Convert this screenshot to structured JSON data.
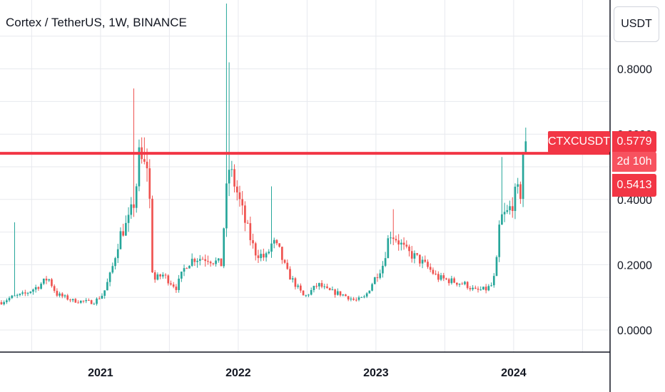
{
  "header": {
    "title": "Cortex / TetherUS, 1W, BINANCE"
  },
  "currency_button": {
    "label": "USDT"
  },
  "tags": {
    "symbol": "CTXCUSDT",
    "last_price": "0.5779",
    "countdown": "2d 10h",
    "horizontal_level": "0.5413"
  },
  "colors": {
    "up": "#26a69a",
    "down": "#ef5350",
    "level_line": "#f23645",
    "grid": "#e7e9ee"
  },
  "chart_data": {
    "type": "candlestick",
    "title": "Cortex / TetherUS, 1W, BINANCE",
    "ylim": [
      -0.07,
      1.0
    ],
    "yticks": [
      {
        "value": 0.0,
        "label": "0.0000"
      },
      {
        "value": 0.2,
        "label": "0.2000"
      },
      {
        "value": 0.4,
        "label": "0.4000"
      },
      {
        "value": 0.6,
        "label": "0.6000"
      },
      {
        "value": 0.8,
        "label": "0.8000"
      }
    ],
    "xticks": [
      {
        "value": 2021.0,
        "label": "2021"
      },
      {
        "value": 2022.0,
        "label": "2022"
      },
      {
        "value": 2023.0,
        "label": "2023"
      },
      {
        "value": 2024.0,
        "label": "2024"
      }
    ],
    "xlim": [
      2020.27,
      2024.7
    ],
    "horizontal_line": 0.5413,
    "last_price": 0.5779,
    "anchors": [
      {
        "t": 2020.28,
        "v": 0.085
      },
      {
        "t": 2020.35,
        "v": 0.1
      },
      {
        "t": 2020.45,
        "v": 0.11
      },
      {
        "t": 2020.55,
        "v": 0.135
      },
      {
        "t": 2020.62,
        "v": 0.16
      },
      {
        "t": 2020.68,
        "v": 0.11
      },
      {
        "t": 2020.8,
        "v": 0.09
      },
      {
        "t": 2020.95,
        "v": 0.085
      },
      {
        "t": 2021.02,
        "v": 0.11
      },
      {
        "t": 2021.08,
        "v": 0.18
      },
      {
        "t": 2021.14,
        "v": 0.29
      },
      {
        "t": 2021.2,
        "v": 0.33
      },
      {
        "t": 2021.25,
        "v": 0.4
      },
      {
        "t": 2021.28,
        "v": 0.53
      },
      {
        "t": 2021.33,
        "v": 0.49
      },
      {
        "t": 2021.35,
        "v": 0.54
      },
      {
        "t": 2021.36,
        "v": 0.33
      },
      {
        "t": 2021.38,
        "v": 0.15
      },
      {
        "t": 2021.45,
        "v": 0.17
      },
      {
        "t": 2021.55,
        "v": 0.13
      },
      {
        "t": 2021.62,
        "v": 0.2
      },
      {
        "t": 2021.68,
        "v": 0.22
      },
      {
        "t": 2021.78,
        "v": 0.22
      },
      {
        "t": 2021.88,
        "v": 0.2
      },
      {
        "t": 2021.9,
        "v": 0.35
      },
      {
        "t": 2021.93,
        "v": 0.5
      },
      {
        "t": 2021.98,
        "v": 0.44
      },
      {
        "t": 2022.05,
        "v": 0.33
      },
      {
        "t": 2022.12,
        "v": 0.24
      },
      {
        "t": 2022.2,
        "v": 0.22
      },
      {
        "t": 2022.25,
        "v": 0.27
      },
      {
        "t": 2022.3,
        "v": 0.24
      },
      {
        "t": 2022.35,
        "v": 0.18
      },
      {
        "t": 2022.43,
        "v": 0.13
      },
      {
        "t": 2022.48,
        "v": 0.1
      },
      {
        "t": 2022.58,
        "v": 0.14
      },
      {
        "t": 2022.65,
        "v": 0.12
      },
      {
        "t": 2022.75,
        "v": 0.11
      },
      {
        "t": 2022.85,
        "v": 0.09
      },
      {
        "t": 2022.92,
        "v": 0.1
      },
      {
        "t": 2022.98,
        "v": 0.15
      },
      {
        "t": 2023.05,
        "v": 0.2
      },
      {
        "t": 2023.1,
        "v": 0.3
      },
      {
        "t": 2023.15,
        "v": 0.28
      },
      {
        "t": 2023.22,
        "v": 0.24
      },
      {
        "t": 2023.3,
        "v": 0.22
      },
      {
        "t": 2023.38,
        "v": 0.19
      },
      {
        "t": 2023.45,
        "v": 0.16
      },
      {
        "t": 2023.55,
        "v": 0.15
      },
      {
        "t": 2023.65,
        "v": 0.14
      },
      {
        "t": 2023.72,
        "v": 0.12
      },
      {
        "t": 2023.8,
        "v": 0.125
      },
      {
        "t": 2023.85,
        "v": 0.14
      },
      {
        "t": 2023.88,
        "v": 0.22
      },
      {
        "t": 2023.9,
        "v": 0.34
      },
      {
        "t": 2023.96,
        "v": 0.36
      },
      {
        "t": 2024.02,
        "v": 0.42
      },
      {
        "t": 2024.05,
        "v": 0.42
      },
      {
        "t": 2024.07,
        "v": 0.56
      },
      {
        "t": 2024.1,
        "v": 0.578
      }
    ],
    "spikes": [
      {
        "t": 2020.38,
        "v": 0.33
      },
      {
        "t": 2021.25,
        "v": 0.74
      },
      {
        "t": 2021.32,
        "v": 0.59
      },
      {
        "t": 2021.91,
        "v": 1.0
      },
      {
        "t": 2021.93,
        "v": 0.82
      },
      {
        "t": 2022.25,
        "v": 0.44
      },
      {
        "t": 2023.12,
        "v": 0.37
      },
      {
        "t": 2023.92,
        "v": 0.53
      },
      {
        "t": 2024.08,
        "v": 0.62
      }
    ]
  }
}
